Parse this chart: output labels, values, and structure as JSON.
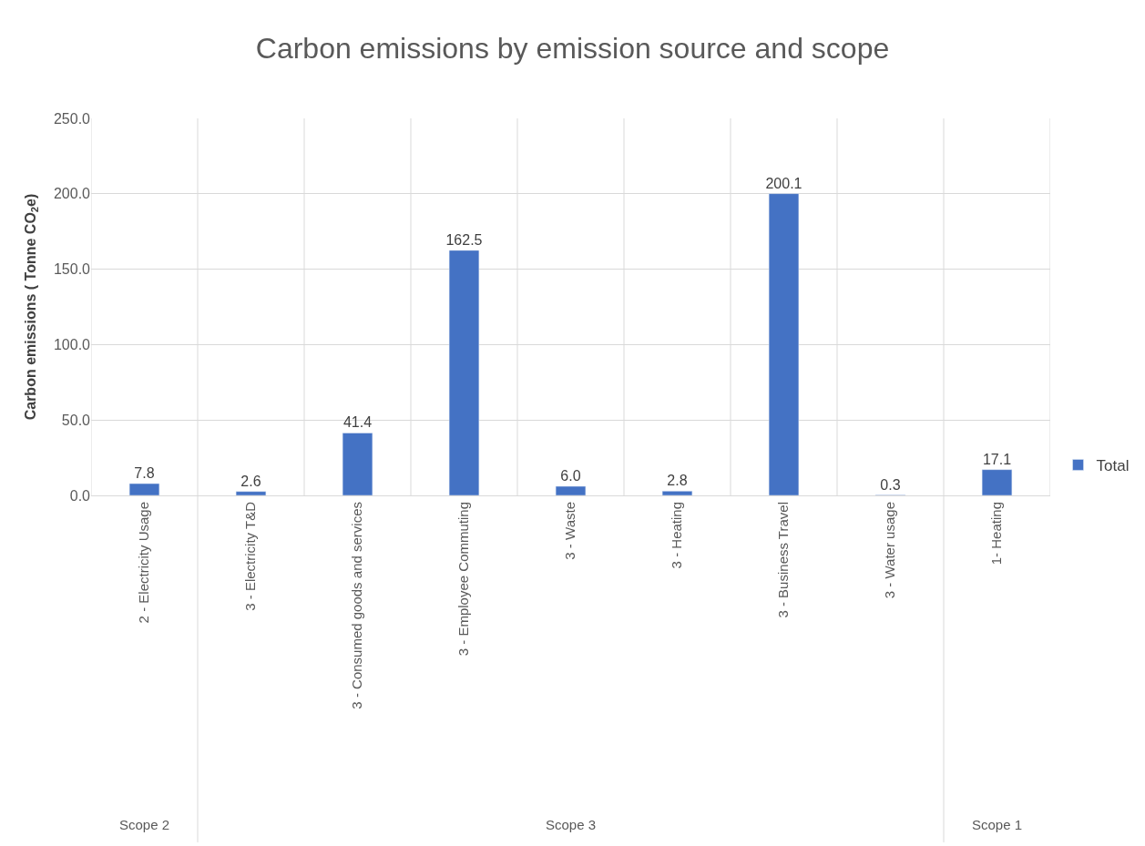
{
  "chart_data": {
    "type": "bar",
    "title": "Carbon emissions by emission source and scope",
    "ylabel": "Carbon emissions ( Tonne CO$_{2}$e)",
    "categories": [
      "2 - Electricity Usage",
      "3 - Electricity T&D",
      "3 - Consumed goods and services",
      "3 - Employee Commuting",
      "3 - Waste",
      "3 - Heating",
      "3 - Business Travel",
      "3 - Water usage",
      "1- Heating"
    ],
    "series": [
      {
        "name": "Total",
        "color": "#4472c4",
        "values": [
          7.8,
          2.6,
          41.4,
          162.5,
          6.0,
          2.8,
          200.1,
          0.3,
          17.1
        ],
        "value_labels": [
          "7.8",
          "2.6",
          "41.4",
          "162.5",
          "6.0",
          "2.8",
          "200.1",
          "0.3",
          "17.1"
        ]
      }
    ],
    "ylim": [
      0,
      250
    ],
    "yticks": [
      {
        "value": 0,
        "label": "0.0"
      },
      {
        "value": 50,
        "label": "50.0"
      },
      {
        "value": 100,
        "label": "100.0"
      },
      {
        "value": 150,
        "label": "150.0"
      },
      {
        "value": 200,
        "label": "200.0"
      },
      {
        "value": 250,
        "label": "250.0"
      }
    ],
    "annotations": [
      "Scope 2",
      "Scope 3",
      "Scope 1"
    ],
    "grid": true,
    "legend": "right"
  }
}
